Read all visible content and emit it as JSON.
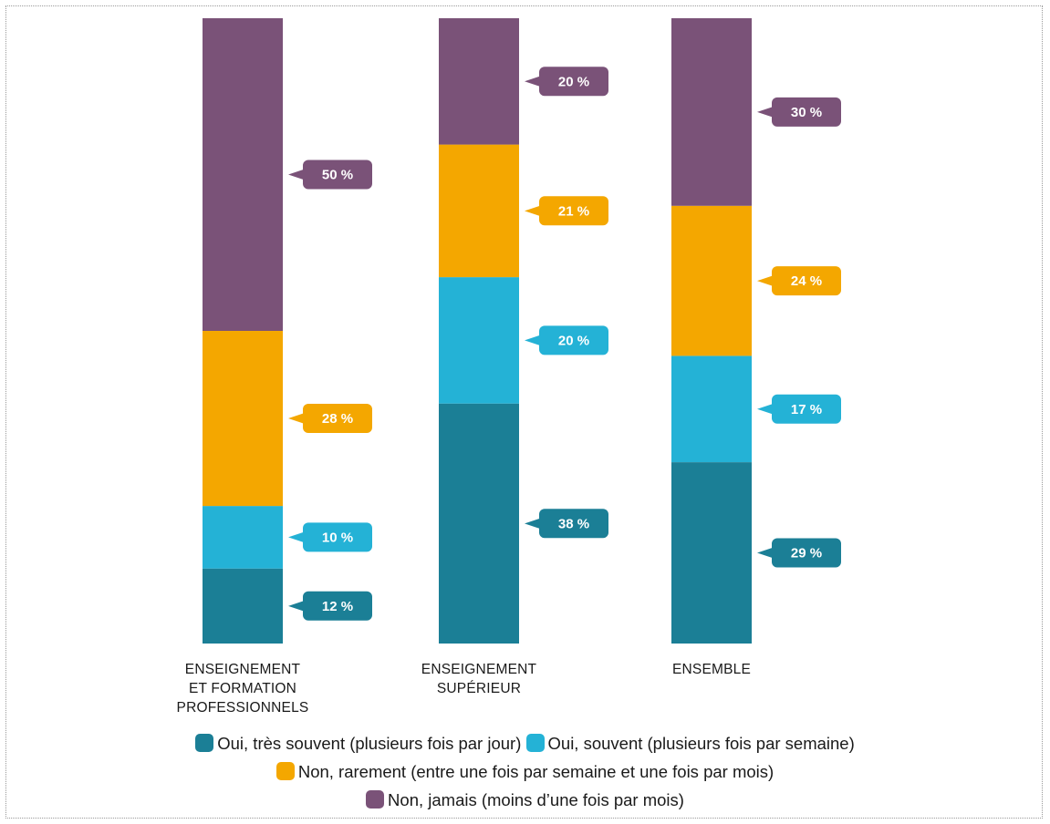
{
  "chart_data": {
    "type": "bar",
    "stacked": true,
    "categories": [
      "ENSEIGNEMENT ET FORMATION PROFESSIONNELS",
      "ENSEIGNEMENT SUPÉRIEUR",
      "ENSEMBLE"
    ],
    "category_label_lines": [
      [
        "ENSEIGNEMENT",
        "ET FORMATION",
        "PROFESSIONNELS"
      ],
      [
        "ENSEIGNEMENT",
        "SUPÉRIEUR"
      ],
      [
        "ENSEMBLE"
      ]
    ],
    "series": [
      {
        "name": "Oui, très souvent (plusieurs fois par jour)",
        "color": "#1b7f96",
        "values": [
          12,
          38,
          29
        ]
      },
      {
        "name": "Oui, souvent (plusieurs fois par semaine)",
        "color": "#24b2d6",
        "values": [
          10,
          20,
          17
        ]
      },
      {
        "name": "Non, rarement (entre une fois par semaine et une fois par mois)",
        "color": "#f4a700",
        "values": [
          28,
          21,
          24
        ]
      },
      {
        "name": "Non, jamais (moins d’une fois par mois)",
        "color": "#7a5278",
        "values": [
          50,
          20,
          30
        ]
      }
    ],
    "value_suffix": " %",
    "legend_position": "bottom",
    "grid": false
  }
}
